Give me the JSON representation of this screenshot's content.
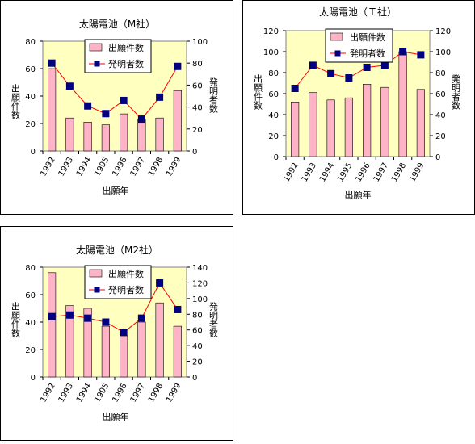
{
  "chart_data": [
    {
      "type": "bar+line",
      "title": "太陽電池（M社）",
      "xlabel": "出願年",
      "ylabel_left": "出願件数",
      "ylabel_right": "発明者数",
      "categories": [
        "1992",
        "1993",
        "1994",
        "1995",
        "1996",
        "1997",
        "1998",
        "1999"
      ],
      "left_ticks": [
        "0",
        "20",
        "40",
        "60",
        "80"
      ],
      "right_ticks": [
        "0",
        "20",
        "40",
        "60",
        "80",
        "100"
      ],
      "ylim_left": [
        0,
        80
      ],
      "ylim_right": [
        0,
        100
      ],
      "series": [
        {
          "name": "出願件数",
          "kind": "bar",
          "axis": "left",
          "values": [
            60,
            24,
            21,
            19,
            27,
            23,
            24,
            44
          ]
        },
        {
          "name": "発明者数",
          "kind": "line",
          "axis": "right",
          "values": [
            80,
            59,
            41,
            34,
            46,
            29,
            49,
            77
          ]
        }
      ],
      "legend": {
        "placement": "top-center"
      },
      "colors": {
        "plot_bg": "#ffffc0",
        "bar": "#ffb3c6",
        "line": "#ff0000",
        "marker": "#000080"
      }
    },
    {
      "type": "bar+line",
      "title": "太陽電池（Ｔ社）",
      "xlabel": "出願年",
      "ylabel_left": "出願件数",
      "ylabel_right": "発明者数",
      "categories": [
        "1992",
        "1993",
        "1994",
        "1995",
        "1996",
        "1997",
        "1998",
        "1999"
      ],
      "left_ticks": [
        "0",
        "20",
        "40",
        "60",
        "80",
        "100",
        "120"
      ],
      "right_ticks": [
        "0",
        "20",
        "40",
        "60",
        "80",
        "100",
        "120"
      ],
      "ylim_left": [
        0,
        120
      ],
      "ylim_right": [
        0,
        120
      ],
      "series": [
        {
          "name": "出願件数",
          "kind": "bar",
          "axis": "left",
          "values": [
            52,
            61,
            54,
            56,
            69,
            66,
            100,
            64
          ]
        },
        {
          "name": "発明者数",
          "kind": "line",
          "axis": "right",
          "values": [
            65,
            87,
            79,
            75,
            85,
            87,
            100,
            97
          ]
        }
      ],
      "legend": {
        "placement": "top-right"
      },
      "colors": {
        "plot_bg": "#ffffc0",
        "bar": "#ffb3c6",
        "line": "#ff0000",
        "marker": "#000080"
      }
    },
    {
      "type": "bar+line",
      "title": "太陽電池（M2社）",
      "xlabel": "出願年",
      "ylabel_left": "出願件数",
      "ylabel_right": "発明者数",
      "categories": [
        "1992",
        "1993",
        "1994",
        "1995",
        "1996",
        "1997",
        "1998",
        "1999"
      ],
      "left_ticks": [
        "0",
        "20",
        "40",
        "60",
        "80"
      ],
      "right_ticks": [
        "0",
        "20",
        "40",
        "60",
        "80",
        "100",
        "120",
        "140"
      ],
      "ylim_left": [
        0,
        80
      ],
      "ylim_right": [
        0,
        140
      ],
      "series": [
        {
          "name": "出願件数",
          "kind": "bar",
          "axis": "left",
          "values": [
            76,
            52,
            50,
            37,
            30,
            40,
            54,
            37
          ]
        },
        {
          "name": "発明者数",
          "kind": "line",
          "axis": "right",
          "values": [
            77,
            79,
            75,
            70,
            57,
            75,
            120,
            86
          ]
        }
      ],
      "legend": {
        "placement": "top-center"
      },
      "colors": {
        "plot_bg": "#ffffc0",
        "bar": "#ffb3c6",
        "line": "#ff0000",
        "marker": "#000080"
      }
    }
  ]
}
